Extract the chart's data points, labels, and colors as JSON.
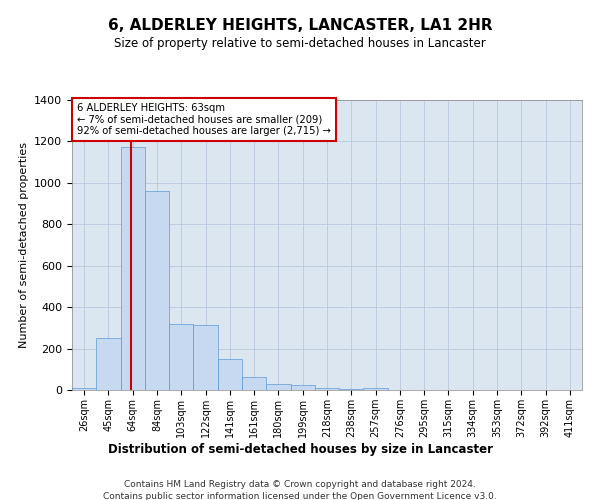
{
  "title": "6, ALDERLEY HEIGHTS, LANCASTER, LA1 2HR",
  "subtitle": "Size of property relative to semi-detached houses in Lancaster",
  "xlabel": "Distribution of semi-detached houses by size in Lancaster",
  "ylabel": "Number of semi-detached properties",
  "footnote1": "Contains HM Land Registry data © Crown copyright and database right 2024.",
  "footnote2": "Contains public sector information licensed under the Open Government Licence v3.0.",
  "annotation_title": "6 ALDERLEY HEIGHTS: 63sqm",
  "annotation_line1": "← 7% of semi-detached houses are smaller (209)",
  "annotation_line2": "92% of semi-detached houses are larger (2,715) →",
  "property_size": 63,
  "bar_color": "#c6d9f0",
  "bar_edge_color": "#5b9bd5",
  "vline_color": "#cc0000",
  "annotation_box_color": "#cc0000",
  "categories": [
    "26sqm",
    "45sqm",
    "64sqm",
    "84sqm",
    "103sqm",
    "122sqm",
    "141sqm",
    "161sqm",
    "180sqm",
    "199sqm",
    "218sqm",
    "238sqm",
    "257sqm",
    "276sqm",
    "295sqm",
    "315sqm",
    "334sqm",
    "353sqm",
    "372sqm",
    "392sqm",
    "411sqm"
  ],
  "bin_edges": [
    17,
    36,
    55,
    74,
    93,
    112,
    131,
    150,
    169,
    188,
    207,
    226,
    245,
    264,
    283,
    302,
    321,
    340,
    359,
    378,
    397,
    416
  ],
  "values": [
    10,
    250,
    1175,
    960,
    320,
    315,
    150,
    65,
    28,
    22,
    10,
    5,
    12,
    2,
    2,
    1,
    0,
    0,
    0,
    0,
    0
  ],
  "ylim": [
    0,
    1400
  ],
  "yticks": [
    0,
    200,
    400,
    600,
    800,
    1000,
    1200,
    1400
  ],
  "plot_bg_color": "#dce6f1",
  "grid_color": "#b8c8dc",
  "font_family": "DejaVu Sans"
}
